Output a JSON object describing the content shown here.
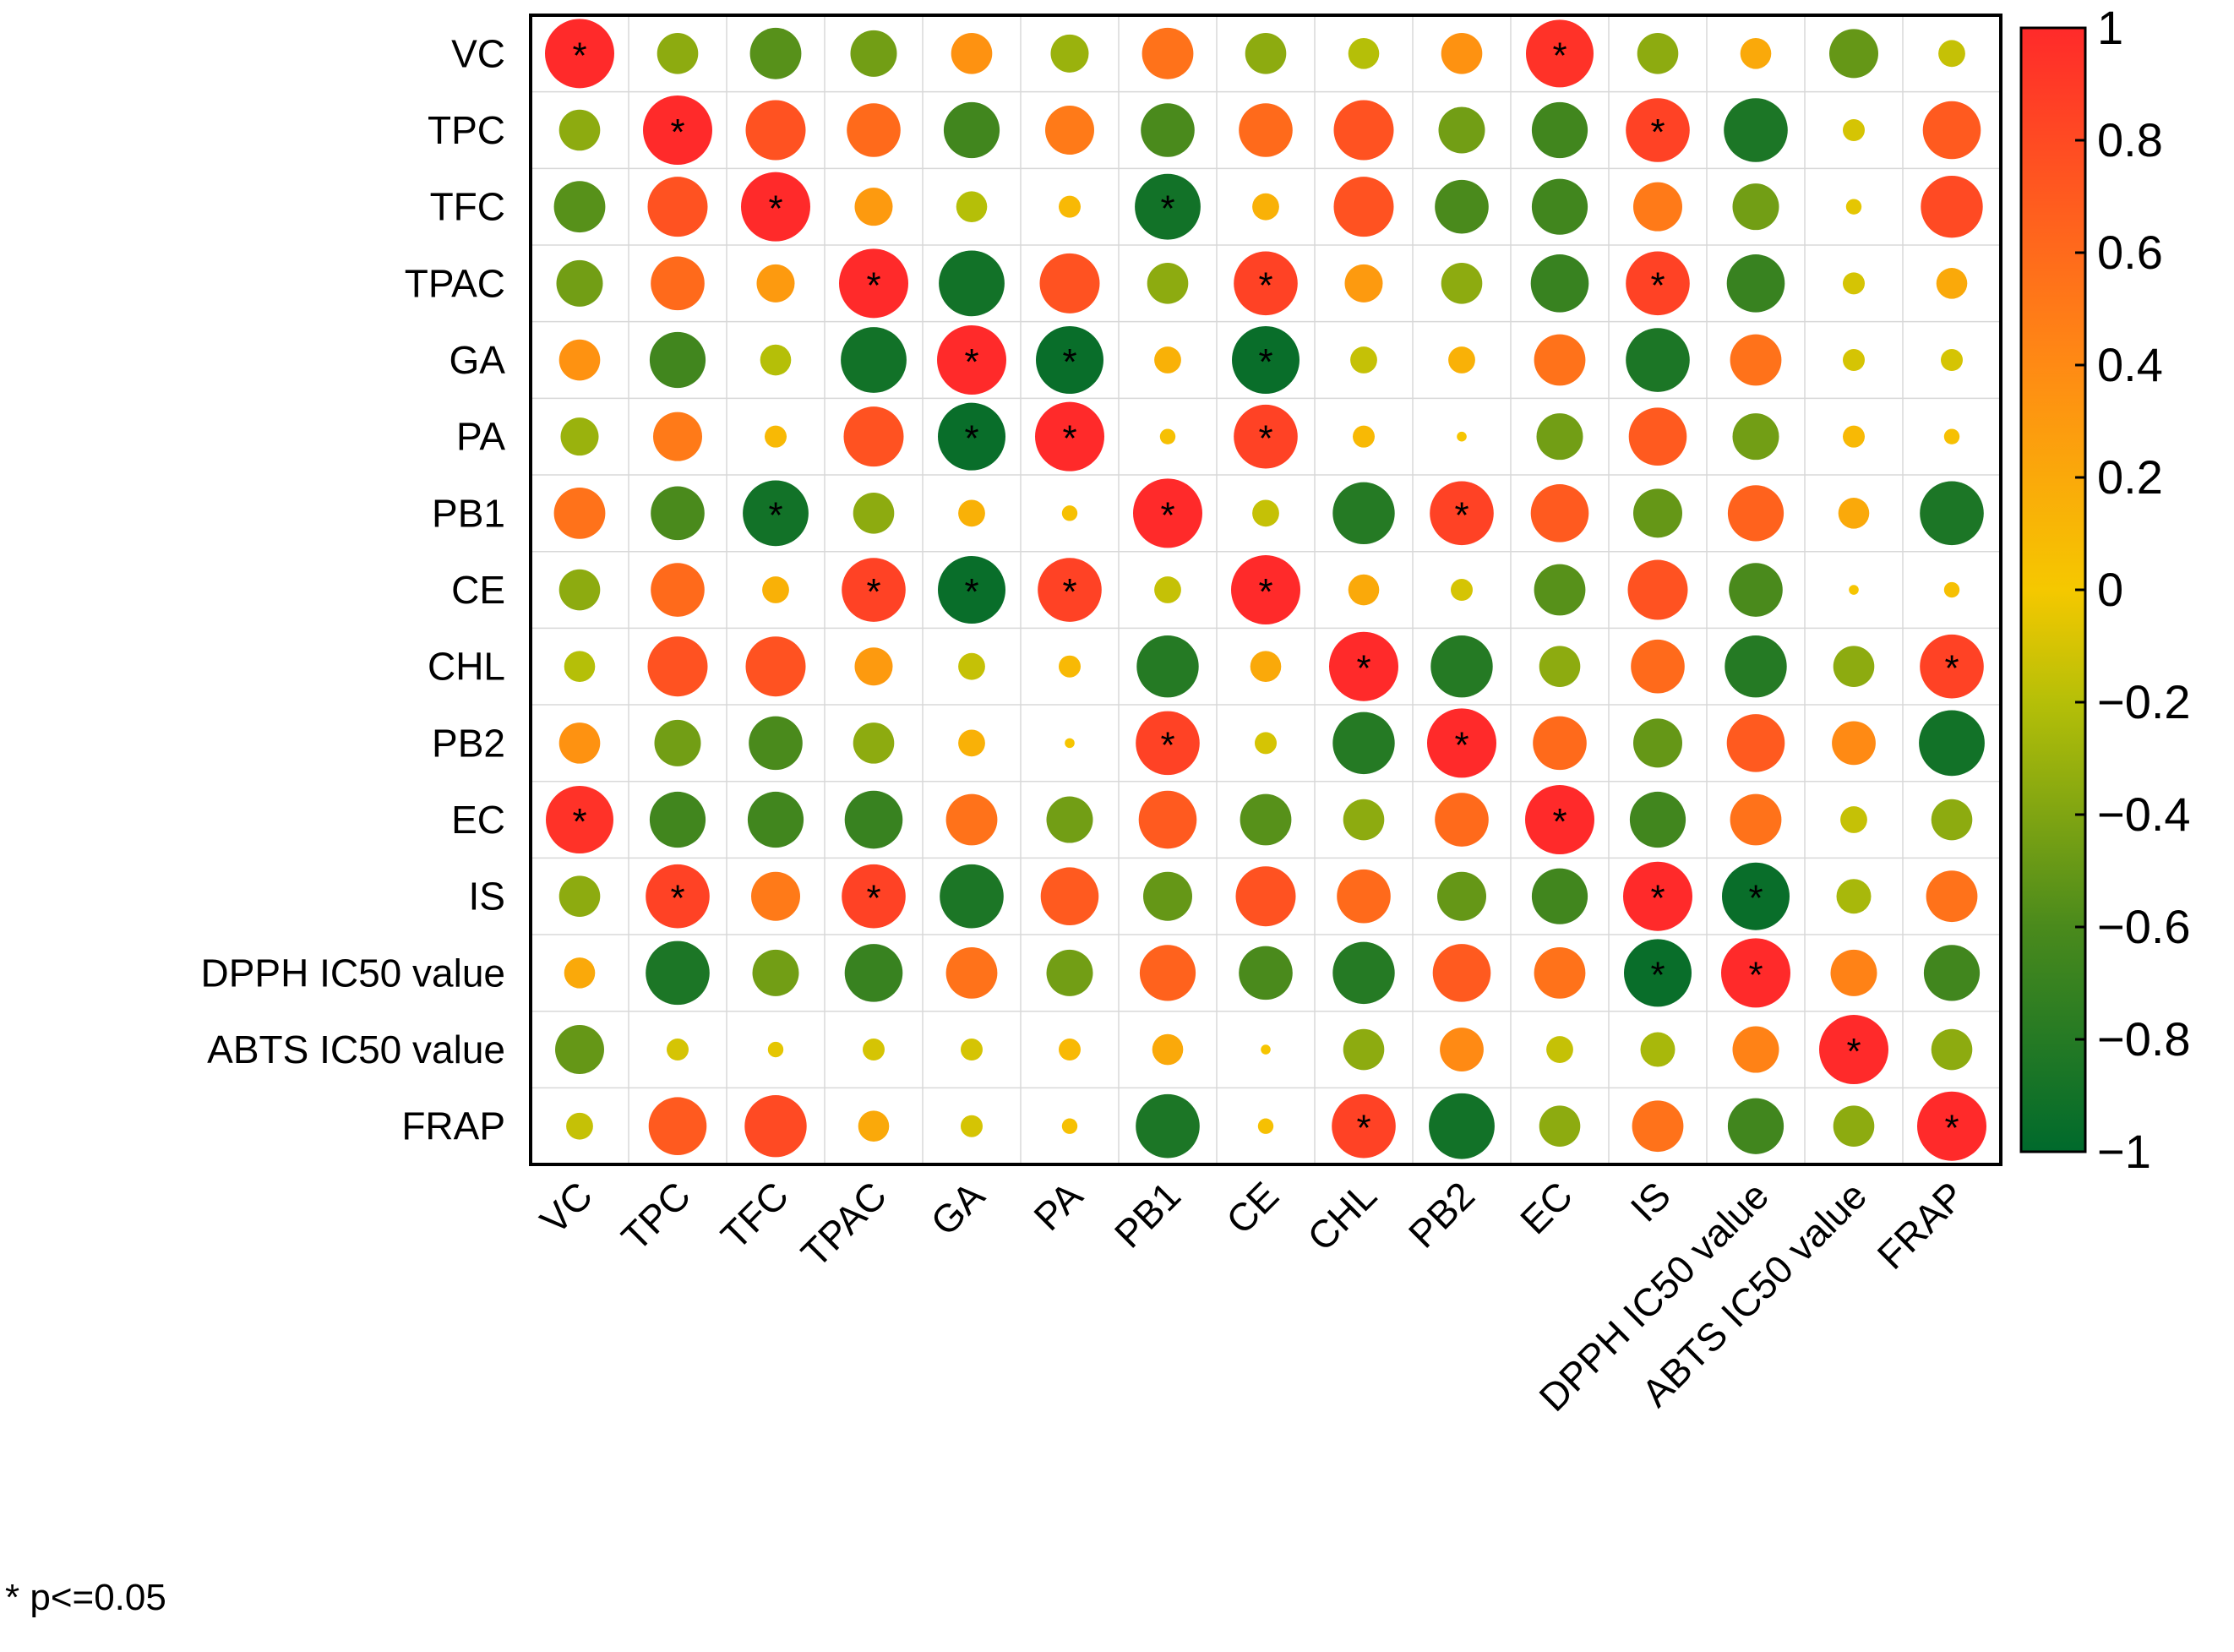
{
  "chart_data": {
    "type": "heatmap",
    "subtype": "correlation-circles",
    "variables": [
      "VC",
      "TPC",
      "TFC",
      "TPAC",
      "GA",
      "PA",
      "PB1",
      "CE",
      "CHL",
      "PB2",
      "EC",
      "IS",
      "DPPH IC50 value",
      "ABTS IC50 value",
      "FRAP"
    ],
    "matrix": [
      [
        1.0,
        -0.35,
        -0.55,
        -0.45,
        0.35,
        -0.3,
        0.55,
        -0.35,
        -0.2,
        0.35,
        0.95,
        -0.35,
        0.2,
        -0.5,
        -0.15
      ],
      [
        -0.35,
        1.0,
        0.75,
        0.6,
        -0.65,
        0.5,
        -0.6,
        0.6,
        0.75,
        -0.45,
        -0.65,
        0.85,
        -0.85,
        -0.1,
        0.7
      ],
      [
        -0.55,
        0.75,
        1.0,
        0.3,
        -0.2,
        0.1,
        -0.9,
        0.15,
        0.75,
        -0.6,
        -0.65,
        0.5,
        -0.45,
        -0.05,
        0.8
      ],
      [
        -0.45,
        0.6,
        0.3,
        1.0,
        -0.9,
        0.75,
        -0.35,
        0.85,
        0.3,
        -0.35,
        -0.7,
        0.85,
        -0.7,
        -0.1,
        0.2
      ],
      [
        0.35,
        -0.65,
        -0.2,
        -0.9,
        1.0,
        -0.95,
        0.15,
        -0.95,
        -0.15,
        0.15,
        0.55,
        -0.85,
        0.55,
        -0.1,
        -0.1
      ],
      [
        -0.3,
        0.5,
        0.1,
        0.75,
        -0.95,
        1.0,
        0.05,
        0.85,
        0.1,
        0.02,
        -0.45,
        0.7,
        -0.45,
        0.1,
        0.05
      ],
      [
        0.55,
        -0.6,
        -0.9,
        -0.35,
        0.15,
        0.05,
        1.0,
        -0.15,
        -0.8,
        0.85,
        0.7,
        -0.5,
        0.65,
        0.2,
        -0.85
      ],
      [
        -0.35,
        0.6,
        0.15,
        0.85,
        -0.95,
        0.85,
        -0.15,
        1.0,
        0.2,
        -0.1,
        -0.55,
        0.75,
        -0.6,
        0.02,
        0.05
      ],
      [
        -0.2,
        0.75,
        0.75,
        0.3,
        -0.15,
        0.1,
        -0.8,
        0.2,
        1.0,
        -0.8,
        -0.35,
        0.6,
        -0.8,
        -0.35,
        0.85
      ],
      [
        0.35,
        -0.45,
        -0.6,
        -0.35,
        0.15,
        0.02,
        0.85,
        -0.1,
        -0.8,
        1.0,
        0.6,
        -0.5,
        0.7,
        0.4,
        -0.9
      ],
      [
        0.95,
        -0.65,
        -0.65,
        -0.7,
        0.55,
        -0.45,
        0.7,
        -0.55,
        -0.35,
        0.6,
        1.0,
        -0.65,
        0.55,
        -0.15,
        -0.35
      ],
      [
        -0.35,
        0.85,
        0.5,
        0.85,
        -0.85,
        0.7,
        -0.5,
        0.75,
        0.6,
        -0.5,
        -0.65,
        1.0,
        -0.95,
        -0.25,
        0.55
      ],
      [
        0.2,
        -0.85,
        -0.45,
        -0.7,
        0.55,
        -0.45,
        0.65,
        -0.6,
        -0.8,
        0.7,
        0.55,
        -0.95,
        1.0,
        0.45,
        -0.65
      ],
      [
        -0.5,
        -0.1,
        -0.05,
        -0.1,
        -0.1,
        0.1,
        0.2,
        0.02,
        -0.35,
        0.4,
        -0.15,
        -0.25,
        0.45,
        1.0,
        -0.35
      ],
      [
        -0.15,
        0.7,
        0.8,
        0.2,
        -0.1,
        0.05,
        -0.85,
        0.05,
        0.85,
        -0.9,
        -0.35,
        0.55,
        -0.65,
        -0.35,
        1.0
      ]
    ],
    "significant": [
      [
        0,
        0
      ],
      [
        0,
        10
      ],
      [
        1,
        1
      ],
      [
        1,
        11
      ],
      [
        2,
        2
      ],
      [
        2,
        6
      ],
      [
        3,
        3
      ],
      [
        3,
        7
      ],
      [
        3,
        11
      ],
      [
        4,
        4
      ],
      [
        4,
        5
      ],
      [
        4,
        7
      ],
      [
        5,
        4
      ],
      [
        5,
        5
      ],
      [
        5,
        7
      ],
      [
        6,
        2
      ],
      [
        6,
        6
      ],
      [
        6,
        9
      ],
      [
        7,
        3
      ],
      [
        7,
        4
      ],
      [
        7,
        5
      ],
      [
        7,
        7
      ],
      [
        8,
        8
      ],
      [
        8,
        14
      ],
      [
        9,
        6
      ],
      [
        9,
        9
      ],
      [
        10,
        0
      ],
      [
        10,
        10
      ],
      [
        11,
        1
      ],
      [
        11,
        3
      ],
      [
        11,
        11
      ],
      [
        11,
        12
      ],
      [
        12,
        11
      ],
      [
        12,
        12
      ],
      [
        13,
        13
      ],
      [
        14,
        8
      ],
      [
        14,
        14
      ]
    ],
    "significance_marker": "*",
    "colorbar": {
      "range": [
        -1,
        1
      ],
      "ticks": [
        "1",
        "0.8",
        "0.6",
        "0.4",
        "0.2",
        "0",
        "−0.2",
        "−0.4",
        "−0.6",
        "−0.8",
        "−1"
      ],
      "colors": [
        "#006a2c",
        "#4a8a1c",
        "#b5bf08",
        "#f5c800",
        "#ff8a14",
        "#ff2a2a"
      ]
    },
    "grid": true,
    "legend": "right",
    "note": "* p<=0.05"
  }
}
